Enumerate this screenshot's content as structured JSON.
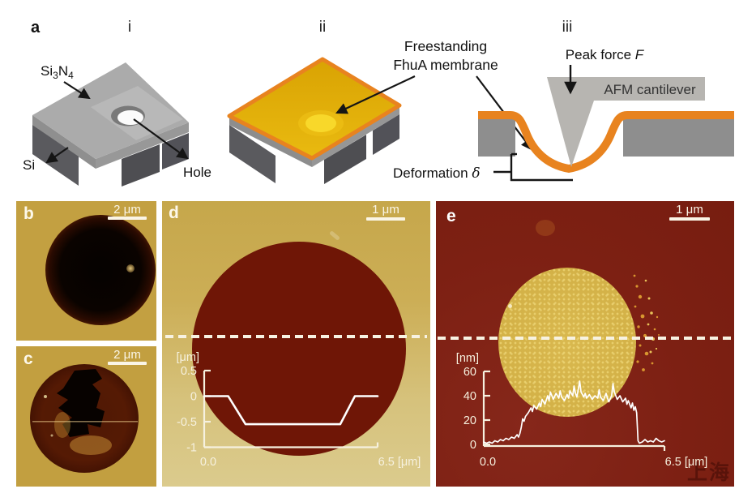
{
  "colors": {
    "membrane_orange": "#e8831f",
    "membrane_yellow": "#e3ad08",
    "chip_gray": "#ababab",
    "si_dark_gray": "#57575a",
    "cantilever_gray": "#b7b5b1",
    "afm_gold_bg": "#c3a041",
    "afm_tan_bg": "#cdb058",
    "afm_dark_red_bg": "#7d2013",
    "hole_dark_red": "#6f1606",
    "profile_line": "#ffffff"
  },
  "panel_a": {
    "label": "a",
    "i": {
      "label": "i",
      "si3n4_base": "Si",
      "si3n4_sub1": "3",
      "si3n4_n": "N",
      "si3n4_sub2": "4",
      "si_label": "Si",
      "hole_label": "Hole"
    },
    "ii": {
      "label": "ii",
      "membrane_line1": "Freestanding",
      "membrane_line2": "FhuA membrane"
    },
    "iii": {
      "label": "iii",
      "peak_force_text": "Peak force ",
      "peak_force_symbol": "F",
      "cantilever_label": "AFM cantilever",
      "deformation_text": "Deformation ",
      "deformation_symbol": "δ"
    }
  },
  "panel_b": {
    "label": "b",
    "scale_bar": "2 μm"
  },
  "panel_c": {
    "label": "c",
    "scale_bar": "2 μm"
  },
  "panel_d": {
    "label": "d",
    "scale_bar": "1 μm"
  },
  "panel_e": {
    "label": "e",
    "scale_bar": "1 μm"
  },
  "watermark": "上海",
  "chart_data": [
    {
      "type": "line",
      "panel": "d",
      "description": "AFM height profile across uncovered hole (section along dashed line)",
      "x_units": "μm",
      "y_units": "μm",
      "xlim": [
        0,
        6.5
      ],
      "ylim": [
        -1,
        0.5
      ],
      "ylabel": "[μm]",
      "ytick_labels": [
        "0.5",
        "0",
        "-0.5",
        "-1"
      ],
      "xtick_labels": [
        "0.0",
        "6.5 [μm]"
      ],
      "points": [
        [
          0,
          0
        ],
        [
          0.9,
          0
        ],
        [
          1.55,
          -0.55
        ],
        [
          5.1,
          -0.55
        ],
        [
          5.65,
          0
        ],
        [
          6.5,
          0
        ]
      ]
    },
    {
      "type": "line",
      "panel": "e",
      "description": "AFM height profile across membrane-covered hole (section along dashed line)",
      "x_units": "μm",
      "y_units": "nm",
      "xlim": [
        0,
        6.5
      ],
      "ylim": [
        0,
        60
      ],
      "ylabel": "[nm]",
      "ytick_labels": [
        "60",
        "40",
        "20",
        "0"
      ],
      "xtick_labels": [
        "0.0",
        "6.5 [μm]"
      ],
      "points": [
        [
          0,
          2
        ],
        [
          0.1,
          1
        ],
        [
          0.2,
          2
        ],
        [
          0.3,
          1
        ],
        [
          0.4,
          3
        ],
        [
          0.5,
          2
        ],
        [
          0.6,
          4
        ],
        [
          0.7,
          3
        ],
        [
          0.8,
          5
        ],
        [
          0.9,
          4
        ],
        [
          1.0,
          6
        ],
        [
          1.1,
          5
        ],
        [
          1.2,
          8
        ],
        [
          1.25,
          6
        ],
        [
          1.3,
          9
        ],
        [
          1.35,
          14
        ],
        [
          1.4,
          21
        ],
        [
          1.45,
          19
        ],
        [
          1.5,
          23
        ],
        [
          1.6,
          26
        ],
        [
          1.7,
          30
        ],
        [
          1.75,
          27
        ],
        [
          1.8,
          32
        ],
        [
          1.9,
          29
        ],
        [
          2.0,
          34
        ],
        [
          2.05,
          31
        ],
        [
          2.1,
          37
        ],
        [
          2.2,
          33
        ],
        [
          2.3,
          40
        ],
        [
          2.35,
          36
        ],
        [
          2.4,
          43
        ],
        [
          2.5,
          37
        ],
        [
          2.6,
          42
        ],
        [
          2.7,
          38
        ],
        [
          2.75,
          44
        ],
        [
          2.8,
          39
        ],
        [
          2.9,
          36
        ],
        [
          3.0,
          41
        ],
        [
          3.05,
          38
        ],
        [
          3.1,
          44
        ],
        [
          3.2,
          40
        ],
        [
          3.25,
          48
        ],
        [
          3.3,
          42
        ],
        [
          3.35,
          39
        ],
        [
          3.4,
          45
        ],
        [
          3.45,
          52
        ],
        [
          3.5,
          43
        ],
        [
          3.6,
          39
        ],
        [
          3.65,
          42
        ],
        [
          3.7,
          38
        ],
        [
          3.8,
          41
        ],
        [
          3.9,
          37
        ],
        [
          4.0,
          40
        ],
        [
          4.1,
          38
        ],
        [
          4.15,
          45
        ],
        [
          4.2,
          39
        ],
        [
          4.3,
          36
        ],
        [
          4.4,
          42
        ],
        [
          4.45,
          38
        ],
        [
          4.5,
          35
        ],
        [
          4.6,
          40
        ],
        [
          4.65,
          50
        ],
        [
          4.7,
          43
        ],
        [
          4.8,
          37
        ],
        [
          4.9,
          40
        ],
        [
          5.0,
          35
        ],
        [
          5.1,
          38
        ],
        [
          5.15,
          33
        ],
        [
          5.2,
          36
        ],
        [
          5.3,
          30
        ],
        [
          5.35,
          34
        ],
        [
          5.4,
          28
        ],
        [
          5.45,
          31
        ],
        [
          5.5,
          26
        ],
        [
          5.55,
          3
        ],
        [
          5.6,
          1
        ],
        [
          5.7,
          2
        ],
        [
          5.8,
          4
        ],
        [
          5.9,
          2
        ],
        [
          6.0,
          3
        ],
        [
          6.1,
          2
        ],
        [
          6.2,
          5
        ],
        [
          6.3,
          3
        ],
        [
          6.4,
          2
        ],
        [
          6.5,
          3
        ]
      ]
    }
  ]
}
